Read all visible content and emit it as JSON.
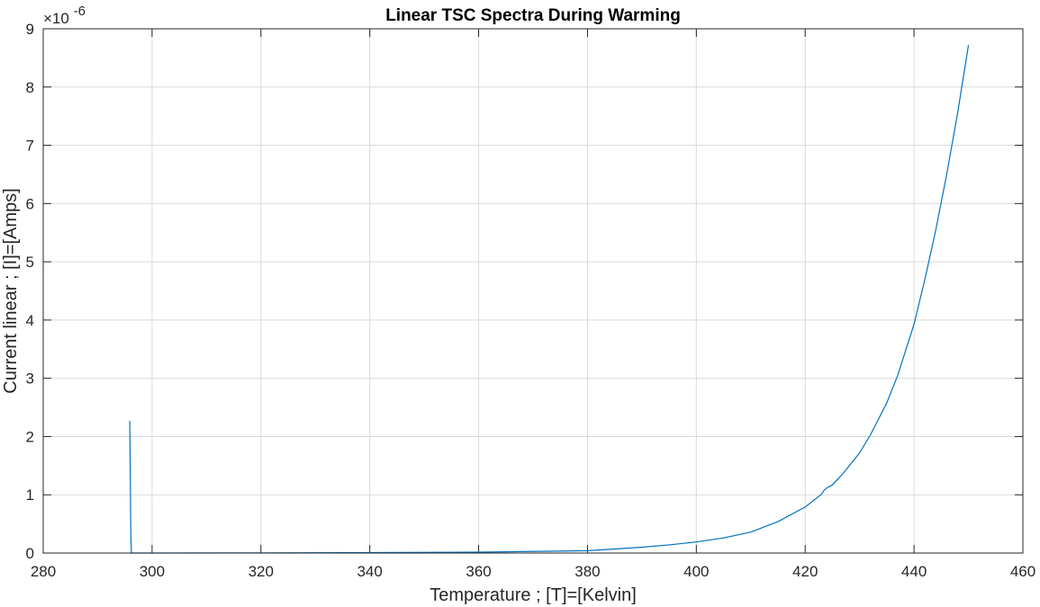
{
  "chart_data": {
    "type": "line",
    "title": "Linear TSC Spectra During Warming",
    "xlabel": "Temperature ; [T]=[Kelvin]",
    "ylabel": "Current linear ; [I]=[Amps]",
    "y_multiplier_base": "×10",
    "y_multiplier_exponent": "-6",
    "xlim": [
      280,
      460
    ],
    "ylim": [
      0,
      9
    ],
    "x_ticks": [
      "280",
      "300",
      "320",
      "340",
      "360",
      "380",
      "400",
      "420",
      "440",
      "460"
    ],
    "y_ticks": [
      "0",
      "1",
      "2",
      "3",
      "4",
      "5",
      "6",
      "7",
      "8",
      "9"
    ],
    "grid": true,
    "color": "#0072BD",
    "series": [
      {
        "x": [
          295.9,
          296.1,
          296.2,
          300,
          320,
          340,
          360,
          380,
          385,
          390,
          395,
          400,
          405,
          410,
          415,
          420,
          423,
          423.5,
          424,
          425,
          427,
          430,
          432,
          435,
          437,
          440,
          442,
          444,
          446,
          448,
          450
        ],
        "y": [
          2.27,
          0.3,
          0.0,
          0.0,
          0.003,
          0.008,
          0.015,
          0.04,
          0.07,
          0.1,
          0.14,
          0.19,
          0.26,
          0.36,
          0.54,
          0.79,
          1.01,
          1.08,
          1.12,
          1.17,
          1.37,
          1.72,
          2.03,
          2.58,
          3.05,
          3.93,
          4.7,
          5.55,
          6.5,
          7.55,
          8.72
        ]
      }
    ]
  }
}
